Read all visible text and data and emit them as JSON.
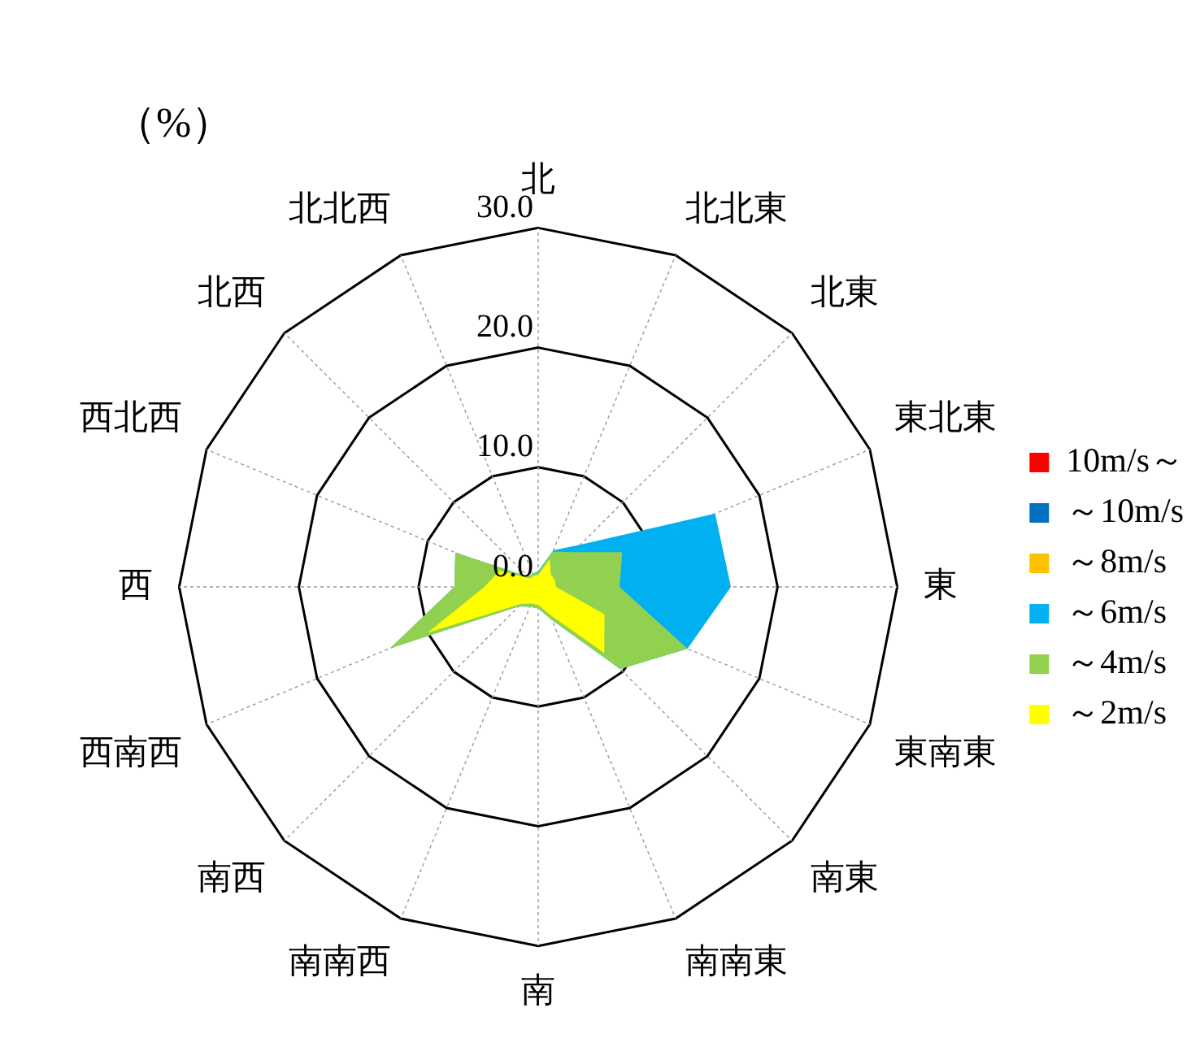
{
  "chart_data": {
    "type": "radar",
    "ylabel": "（%）",
    "categories": [
      "北",
      "北北東",
      "北東",
      "東北東",
      "東",
      "東南東",
      "南東",
      "南南東",
      "南",
      "南南西",
      "南西",
      "西南西",
      "西",
      "西北西",
      "北西",
      "北北西"
    ],
    "ylim": [
      0,
      30
    ],
    "yticks": [
      {
        "value": 0,
        "label": "0.0"
      },
      {
        "value": 10,
        "label": "10.0"
      },
      {
        "value": 20,
        "label": "20.0"
      },
      {
        "value": 30,
        "label": "30.0"
      }
    ],
    "grid": true,
    "legend": "right",
    "marker": "none",
    "series": [
      {
        "name": "～2m/s",
        "color": "#ffff00",
        "values": [
          1.0,
          2.5,
          1.5,
          1.5,
          1.5,
          6.0,
          7.8,
          2.5,
          1.5,
          1.5,
          2.0,
          10.0,
          4.5,
          3.5,
          1.0,
          1.0
        ]
      },
      {
        "name": "～4m/s",
        "color": "#92d050",
        "values": [
          1.2,
          3.2,
          4.1,
          7.6,
          6.8,
          13.5,
          9.7,
          3.0,
          1.8,
          1.8,
          2.3,
          13.4,
          7.0,
          7.5,
          1.2,
          1.2
        ]
      },
      {
        "name": "～6m/s",
        "color": "#00b0f0",
        "values": [
          1.3,
          3.3,
          5.0,
          16.0,
          16.1,
          13.5,
          9.7,
          3.0,
          1.8,
          1.8,
          2.3,
          13.4,
          7.0,
          7.5,
          1.2,
          1.2
        ]
      },
      {
        "name": "～8m/s",
        "color": "#ffc000",
        "values": [
          null,
          null,
          null,
          null,
          null,
          null,
          null,
          null,
          null,
          null,
          null,
          null,
          null,
          null,
          null,
          null
        ]
      },
      {
        "name": "～10m/s",
        "color": "#0070c0",
        "values": [
          null,
          null,
          null,
          null,
          null,
          null,
          null,
          null,
          null,
          null,
          null,
          null,
          null,
          null,
          null,
          null
        ]
      },
      {
        "name": "10m/s～",
        "color": "#ff0000",
        "values": [
          null,
          null,
          null,
          null,
          null,
          null,
          null,
          null,
          null,
          null,
          null,
          null,
          null,
          null,
          null,
          null
        ]
      }
    ]
  }
}
